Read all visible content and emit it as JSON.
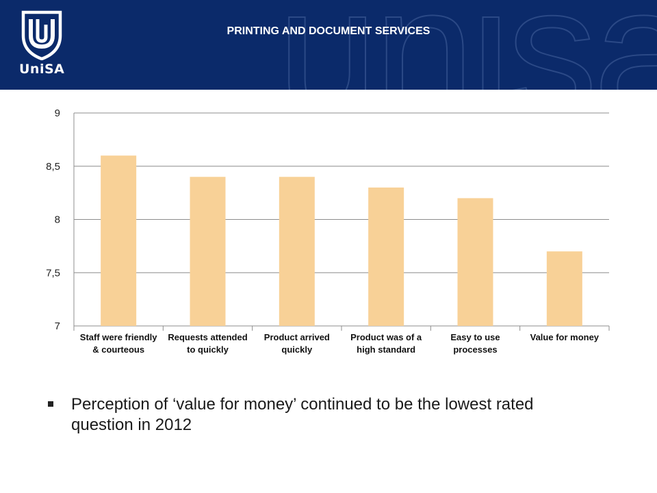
{
  "header": {
    "logo_text": "UniSA",
    "title": "PRINTING AND DOCUMENT SERVICES",
    "watermark": "unisa"
  },
  "chart_data": {
    "type": "bar",
    "categories": [
      "Staff were friendly & courteous",
      "Requests attended to quickly",
      "Product arrived quickly",
      "Product was of a high standard",
      "Easy to use processes",
      "Value for money"
    ],
    "values": [
      8.6,
      8.4,
      8.4,
      8.3,
      8.2,
      7.7
    ],
    "ylim": [
      7,
      9
    ],
    "yticks": [
      7,
      7.5,
      8,
      8.5,
      9
    ],
    "ytick_labels": [
      "7",
      "7,5",
      "8",
      "8,5",
      "9"
    ],
    "title": "",
    "xlabel": "",
    "ylabel": "",
    "grid": true,
    "bar_color": "#f8d197",
    "grid_color": "#8c8c8c"
  },
  "bullets": [
    "Perception of ‘value for money’ continued to be the lowest rated question in 2012"
  ],
  "colors": {
    "header_bg": "#0b2a6a",
    "logo_color": "#ffffff"
  }
}
